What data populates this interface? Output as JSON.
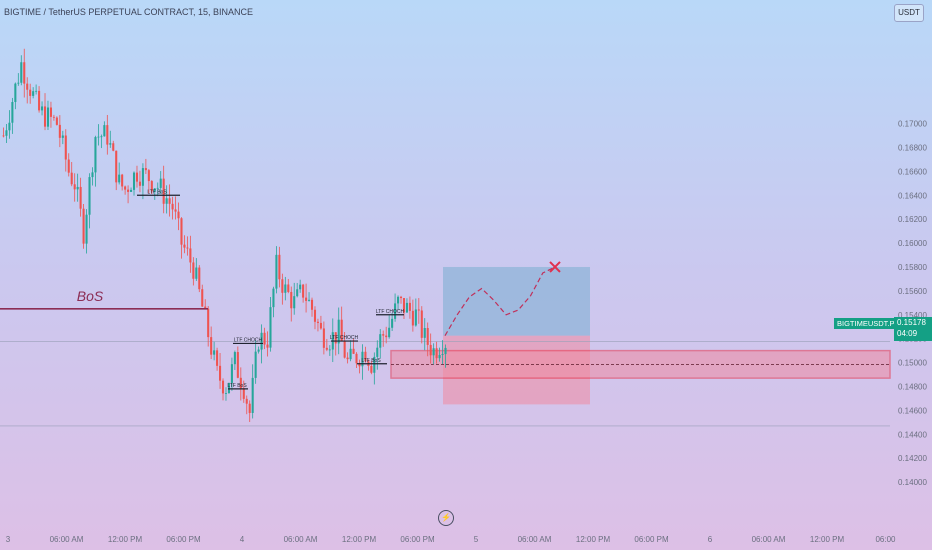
{
  "header": {
    "title": "BIGTIME / TetherUS PERPETUAL CONTRACT, 15, BINANCE",
    "currency_button": "USDT"
  },
  "price_tag": {
    "symbol": "BIGTIMEUSDT.P",
    "price": "0.15178",
    "countdown": "04:09"
  },
  "colors": {
    "up": "#26a69a",
    "down": "#ef5350",
    "tag": "#14a085",
    "annotation_line": "#8c2d54",
    "target_zone": "#8fb4d8",
    "stop_zone": "#f08aa0",
    "demand_zone_border": "#e8384f"
  },
  "icons": [
    "lightning-icon",
    "x-mark-icon"
  ],
  "chart_data": {
    "type": "candlestick",
    "title": "BIGTIME / TetherUS PERPETUAL CONTRACT, 15, BINANCE",
    "ylim": [
      0.1385,
      0.1785
    ],
    "y_ticks": [
      "0.17000",
      "0.16800",
      "0.16600",
      "0.16400",
      "0.16200",
      "0.16000",
      "0.15800",
      "0.15600",
      "0.15400",
      "0.15200",
      "0.15000",
      "0.14800",
      "0.14600",
      "0.14400",
      "0.14200",
      "0.14000"
    ],
    "x_ticks": [
      "3",
      "06:00 AM",
      "12:00 PM",
      "06:00 PM",
      "4",
      "06:00 AM",
      "12:00 PM",
      "06:00 PM",
      "5",
      "06:00 AM",
      "12:00 PM",
      "06:00 PM",
      "6",
      "06:00 AM",
      "12:00 PM",
      "06:00"
    ],
    "candles_count": 150,
    "path": [
      [
        0,
        0.169
      ],
      [
        6,
        0.175
      ],
      [
        12,
        0.171
      ],
      [
        18,
        0.17
      ],
      [
        22,
        0.166
      ],
      [
        24,
        0.165
      ],
      [
        27,
        0.161
      ],
      [
        31,
        0.169
      ],
      [
        35,
        0.169
      ],
      [
        39,
        0.165
      ],
      [
        41,
        0.1645
      ],
      [
        45,
        0.166
      ],
      [
        49,
        0.1655
      ],
      [
        53,
        0.1645
      ],
      [
        57,
        0.163
      ],
      [
        60,
        0.16
      ],
      [
        64,
        0.158
      ],
      [
        68,
        0.1535
      ],
      [
        72,
        0.149
      ],
      [
        75,
        0.148
      ],
      [
        78,
        0.15
      ],
      [
        81,
        0.148
      ],
      [
        83,
        0.1458
      ],
      [
        86,
        0.152
      ],
      [
        89,
        0.152
      ],
      [
        92,
        0.158
      ],
      [
        95,
        0.156
      ],
      [
        98,
        0.155
      ],
      [
        101,
        0.156
      ],
      [
        104,
        0.1545
      ],
      [
        107,
        0.1525
      ],
      [
        110,
        0.152
      ],
      [
        113,
        0.1525
      ],
      [
        116,
        0.15
      ],
      [
        119,
        0.1505
      ],
      [
        122,
        0.151
      ],
      [
        124,
        0.15
      ],
      [
        127,
        0.152
      ],
      [
        130,
        0.153
      ],
      [
        133,
        0.155
      ],
      [
        136,
        0.1545
      ],
      [
        139,
        0.154
      ],
      [
        142,
        0.152
      ],
      [
        145,
        0.151
      ],
      [
        148,
        0.1518
      ],
      [
        149,
        0.15178
      ]
    ],
    "annotations": [
      {
        "label": "BoS",
        "price": 0.1545
      },
      {
        "label": "LTF BoS",
        "price": 0.164
      },
      {
        "label": "LTF BoS",
        "price": 0.1478
      },
      {
        "label": "LTF CHOCH",
        "price": 0.1516
      },
      {
        "label": "LTF CHOCH",
        "price": 0.1518
      },
      {
        "label": "LTF BoS",
        "price": 0.1499
      },
      {
        "label": "LTF CHOCH",
        "price": 0.154
      }
    ],
    "position": {
      "entry": 0.15225,
      "target": 0.158,
      "stop": 0.1465
    },
    "demand_zone": {
      "top": 0.151,
      "bottom": 0.1487,
      "mid": 0.14985
    },
    "projection": [
      [
        0.15225
      ],
      [
        0.154
      ],
      [
        0.1555
      ],
      [
        0.1562
      ],
      [
        0.1552
      ],
      [
        0.154
      ],
      [
        0.1544
      ],
      [
        0.1556
      ],
      [
        0.1575
      ],
      [
        0.158
      ]
    ],
    "grid": false,
    "legend": "none"
  }
}
